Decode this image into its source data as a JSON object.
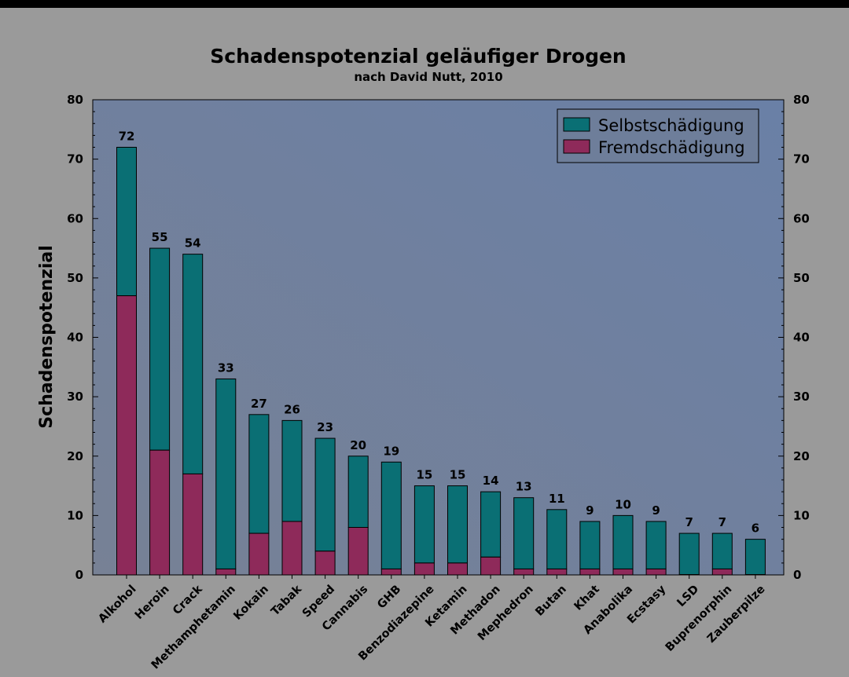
{
  "chart_data": {
    "type": "bar",
    "stacked": true,
    "title": "Schadenspotenzial geläufiger Drogen",
    "subtitle": "nach David Nutt, 2010",
    "ylabel": "Schadenspotenzial",
    "xlabel": "",
    "ylim": [
      0,
      80
    ],
    "yticks": [
      0,
      10,
      20,
      30,
      40,
      50,
      60,
      70,
      80
    ],
    "secondary_y_axis": true,
    "grid": false,
    "legend_position": "top-right",
    "categories": [
      "Alkohol",
      "Heroin",
      "Crack",
      "Methamphetamin",
      "Kokain",
      "Tabak",
      "Speed",
      "Cannabis",
      "GHB",
      "Benzodiazepine",
      "Ketamin",
      "Methadon",
      "Mephedron",
      "Butan",
      "Khat",
      "Anabolika",
      "Ecstasy",
      "LSD",
      "Buprenorphin",
      "Zauberpilze"
    ],
    "totals": [
      72,
      55,
      54,
      33,
      27,
      26,
      23,
      20,
      19,
      15,
      15,
      14,
      13,
      11,
      9,
      10,
      9,
      7,
      7,
      6
    ],
    "series": [
      {
        "name": "Fremdschädigung",
        "color": "#8e2a5a",
        "values": [
          47,
          21,
          17,
          1,
          7,
          9,
          4,
          8,
          1,
          2,
          2,
          3,
          1,
          1,
          1,
          1,
          1,
          0,
          1,
          0
        ]
      },
      {
        "name": "Selbstschädigung",
        "color": "#0a6f74",
        "values": [
          25,
          34,
          37,
          32,
          20,
          17,
          19,
          12,
          18,
          13,
          13,
          11,
          12,
          10,
          8,
          9,
          8,
          7,
          6,
          6
        ]
      }
    ],
    "legend_order": [
      "Selbstschädigung",
      "Fremdschädigung"
    ]
  }
}
